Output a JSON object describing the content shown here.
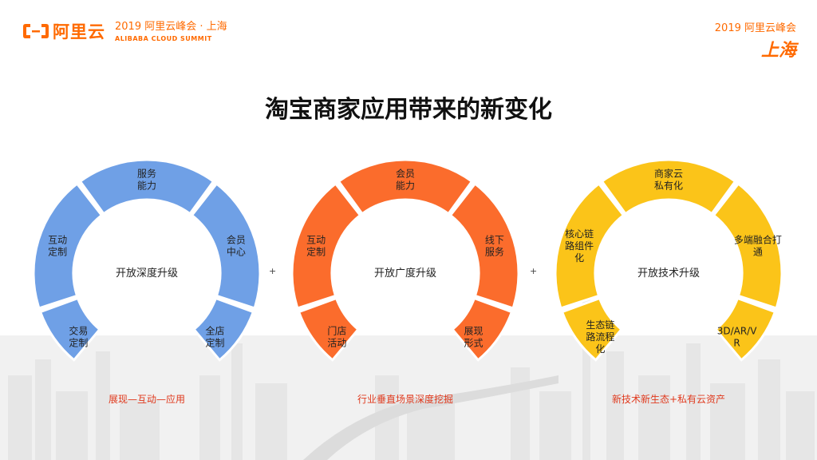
{
  "header": {
    "logo_text": "阿里云",
    "summit_line1": "2019 阿里云峰会 · 上海",
    "summit_line2": "ALIBABA CLOUD SUMMIT",
    "right_line1": "2019 阿里云峰会",
    "right_line2": "上海"
  },
  "title": "淘宝商家应用带来的新变化",
  "colors": {
    "blue": "#6fa0e6",
    "orange": "#fb6c2c",
    "yellow": "#fbc419",
    "brand": "#ff6a00",
    "caption_red": "#e03a1e"
  },
  "rings": [
    {
      "center": "开放深度升级",
      "segments": [
        "互动\n定制",
        "服务\n能力",
        "会员\n中心",
        "交易\n定制",
        "全店\n定制"
      ],
      "caption": "展现—互动—应用"
    },
    {
      "center": "开放广度升级",
      "segments": [
        "互动\n定制",
        "会员\n能力",
        "线下\n服务",
        "门店\n活动",
        "展现\n形式"
      ],
      "caption": "行业垂直场景深度挖掘"
    },
    {
      "center": "开放技术升级",
      "segments": [
        "核心链\n路组件\n化",
        "商家云\n私有化",
        "多端融合打\n通",
        "生态链\n路流程\n化",
        "3D/AR/V\nR"
      ],
      "caption": "新技术新生态+私有云资产"
    }
  ],
  "plus_signs": [
    "+",
    "+"
  ]
}
